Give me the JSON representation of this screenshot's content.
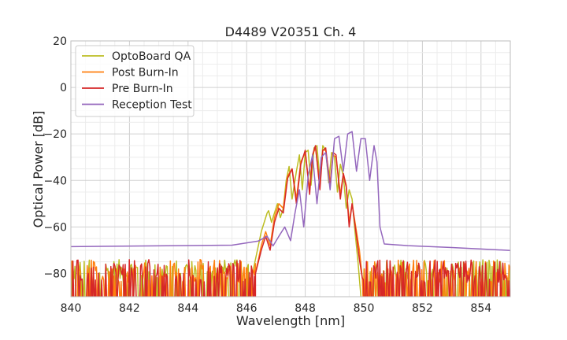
{
  "chart_data": {
    "type": "line",
    "title": "D4489 V20351 Ch. 4",
    "xlabel": "Wavelength [nm]",
    "ylabel": "Optical Power [dB]",
    "xlim": [
      840,
      855
    ],
    "ylim": [
      -90,
      20
    ],
    "xticks": [
      "840",
      "842",
      "844",
      "846",
      "848",
      "850",
      "852",
      "854"
    ],
    "yticks": [
      "20",
      "0",
      "−20",
      "−40",
      "−60",
      "−80"
    ],
    "grid": true,
    "legend_position": "top-left",
    "series": [
      {
        "name": "OptoBoard QA",
        "color": "#bcbd22",
        "noise_floor": -80,
        "x": [
          846.2,
          846.4,
          846.5,
          846.6,
          846.7,
          846.75,
          846.85,
          846.95,
          847.05,
          847.15,
          847.25,
          847.35,
          847.45,
          847.55,
          847.7,
          847.8,
          847.9,
          848.0,
          848.1,
          848.2,
          848.3,
          848.4,
          848.5,
          848.6,
          848.7,
          848.8,
          848.9,
          849.0,
          849.1,
          849.2,
          849.3,
          849.4,
          849.5,
          849.6,
          849.7,
          849.8,
          849.9
        ],
        "y": [
          -80,
          -68,
          -62,
          -58,
          -54,
          -53,
          -58,
          -54,
          -50,
          -56,
          -52,
          -40,
          -34,
          -48,
          -36,
          -29,
          -44,
          -28,
          -27,
          -42,
          -26,
          -25,
          -40,
          -25,
          -27,
          -41,
          -28,
          -30,
          -45,
          -33,
          -38,
          -52,
          -44,
          -48,
          -62,
          -75,
          -90
        ]
      },
      {
        "name": "Post Burn-In",
        "color": "#ff7f0e",
        "noise_floor": -80,
        "x": [
          846.3,
          846.5,
          846.65,
          846.8,
          846.95,
          847.1,
          847.25,
          847.4,
          847.55,
          847.7,
          847.85,
          848.0,
          848.15,
          848.25,
          848.35,
          848.5,
          848.6,
          848.7,
          848.85,
          848.95,
          849.05,
          849.2,
          849.3,
          849.4,
          849.5,
          849.6,
          849.75,
          849.85,
          849.95
        ],
        "y": [
          -80,
          -68,
          -62,
          -68,
          -56,
          -50,
          -52,
          -38,
          -35,
          -48,
          -32,
          -28,
          -44,
          -29,
          -26,
          -42,
          -27,
          -27,
          -41,
          -29,
          -30,
          -46,
          -37,
          -42,
          -58,
          -50,
          -62,
          -70,
          -82
        ]
      },
      {
        "name": "Pre Burn-In",
        "color": "#d62728",
        "noise_floor": -80,
        "x": [
          846.3,
          846.5,
          846.65,
          846.8,
          846.95,
          847.1,
          847.25,
          847.4,
          847.55,
          847.7,
          847.85,
          848.0,
          848.15,
          848.25,
          848.35,
          848.5,
          848.6,
          848.7,
          848.85,
          848.95,
          849.05,
          849.2,
          849.3,
          849.4,
          849.5,
          849.6,
          849.75,
          849.85,
          849.95
        ],
        "y": [
          -80,
          -70,
          -64,
          -70,
          -58,
          -52,
          -54,
          -39,
          -35,
          -50,
          -33,
          -27,
          -46,
          -29,
          -25,
          -44,
          -27,
          -26,
          -43,
          -28,
          -29,
          -48,
          -37,
          -43,
          -60,
          -50,
          -64,
          -74,
          -82
        ]
      },
      {
        "name": "Reception Test",
        "color": "#9467bd",
        "noise_floor": -68,
        "x": [
          840.0,
          845.5,
          846.0,
          846.4,
          846.7,
          846.9,
          847.1,
          847.3,
          847.5,
          847.65,
          847.8,
          847.95,
          848.1,
          848.25,
          848.4,
          848.55,
          848.7,
          848.85,
          849.0,
          849.15,
          849.3,
          849.45,
          849.6,
          849.75,
          849.9,
          850.05,
          850.2,
          850.35,
          850.45,
          850.55,
          850.7,
          851.5,
          853.0,
          855.0
        ],
        "y": [
          -68,
          -68,
          -67,
          -66,
          -64,
          -68,
          -64,
          -60,
          -66,
          -54,
          -44,
          -60,
          -38,
          -29,
          -50,
          -30,
          -28,
          -44,
          -22,
          -21,
          -36,
          -20,
          -19,
          -36,
          -22,
          -22,
          -40,
          -25,
          -32,
          -60,
          -67,
          -68,
          -69,
          -70
        ]
      }
    ]
  }
}
